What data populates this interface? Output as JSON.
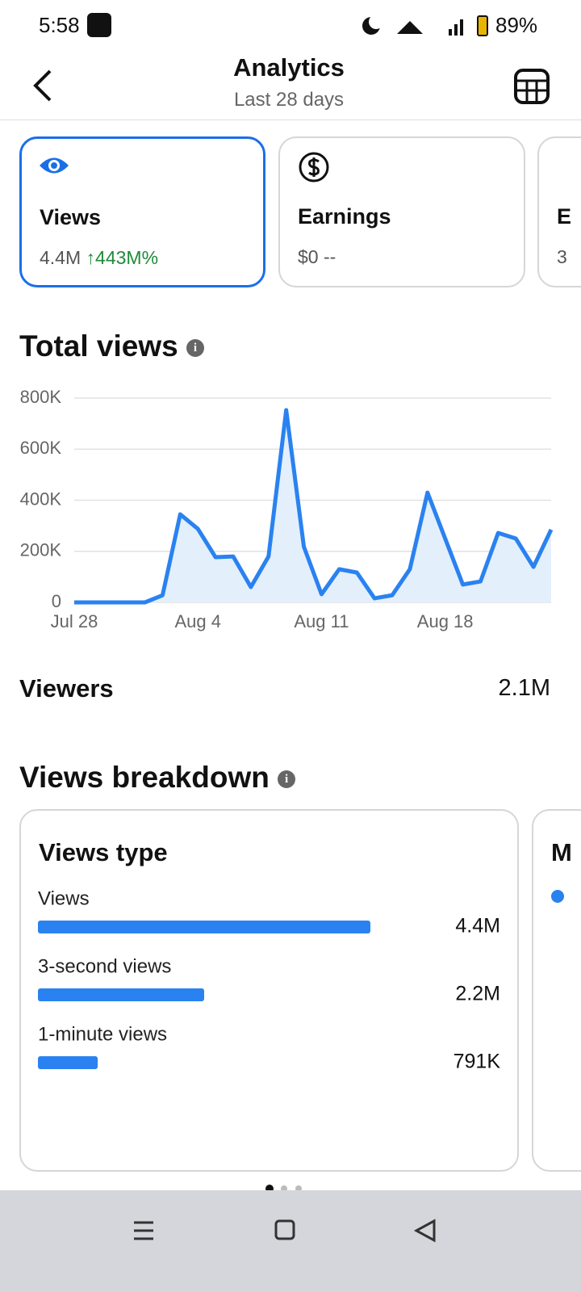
{
  "status_bar": {
    "time": "5:58",
    "battery": "89%"
  },
  "header": {
    "title": "Analytics",
    "subtitle": "Last 28 days"
  },
  "metric_cards": [
    {
      "label": "Views",
      "value": "4.4M",
      "change": "↑443M%"
    },
    {
      "label": "Earnings",
      "value": "$0",
      "change": "--"
    },
    {
      "label": "E",
      "value": "3"
    }
  ],
  "viewers": {
    "label": "Viewers",
    "value": "2.1M"
  },
  "breakdown": {
    "title": "Views breakdown",
    "next_card_title": "M"
  },
  "chart_data": [
    {
      "type": "line",
      "title": "Total views",
      "color": "#2a82f0",
      "area_color": "#e4effc",
      "grid": true,
      "categories": [
        "Jul 28",
        null,
        null,
        null,
        null,
        null,
        null,
        "Aug 4",
        null,
        null,
        null,
        null,
        null,
        null,
        "Aug 11",
        null,
        null,
        null,
        null,
        null,
        null,
        "Aug 18",
        null,
        null,
        null,
        null,
        null,
        null
      ],
      "values": [
        0,
        0,
        0,
        0,
        0,
        28000,
        345000,
        288000,
        177000,
        180000,
        60000,
        180000,
        753000,
        218000,
        32000,
        130000,
        117000,
        16000,
        28000,
        130000,
        430000,
        250000,
        70000,
        82000,
        272000,
        250000,
        139000,
        285000
      ],
      "ylim": [
        0,
        800000
      ],
      "yticks": [
        0,
        {
          "value": 200000,
          "label": "200K"
        },
        {
          "value": 400000,
          "label": "400K"
        },
        {
          "value": 600000,
          "label": "600K"
        },
        {
          "value": 800000,
          "label": "800K"
        }
      ]
    },
    {
      "type": "bar",
      "orientation": "horizontal",
      "title": "Views type",
      "color": "#2a82f0",
      "categories": [
        "Views",
        "3-second views",
        "1-minute views"
      ],
      "values": [
        4400000,
        2200000,
        791000
      ],
      "value_labels": [
        "4.4M",
        "2.2M",
        "791K"
      ]
    }
  ]
}
